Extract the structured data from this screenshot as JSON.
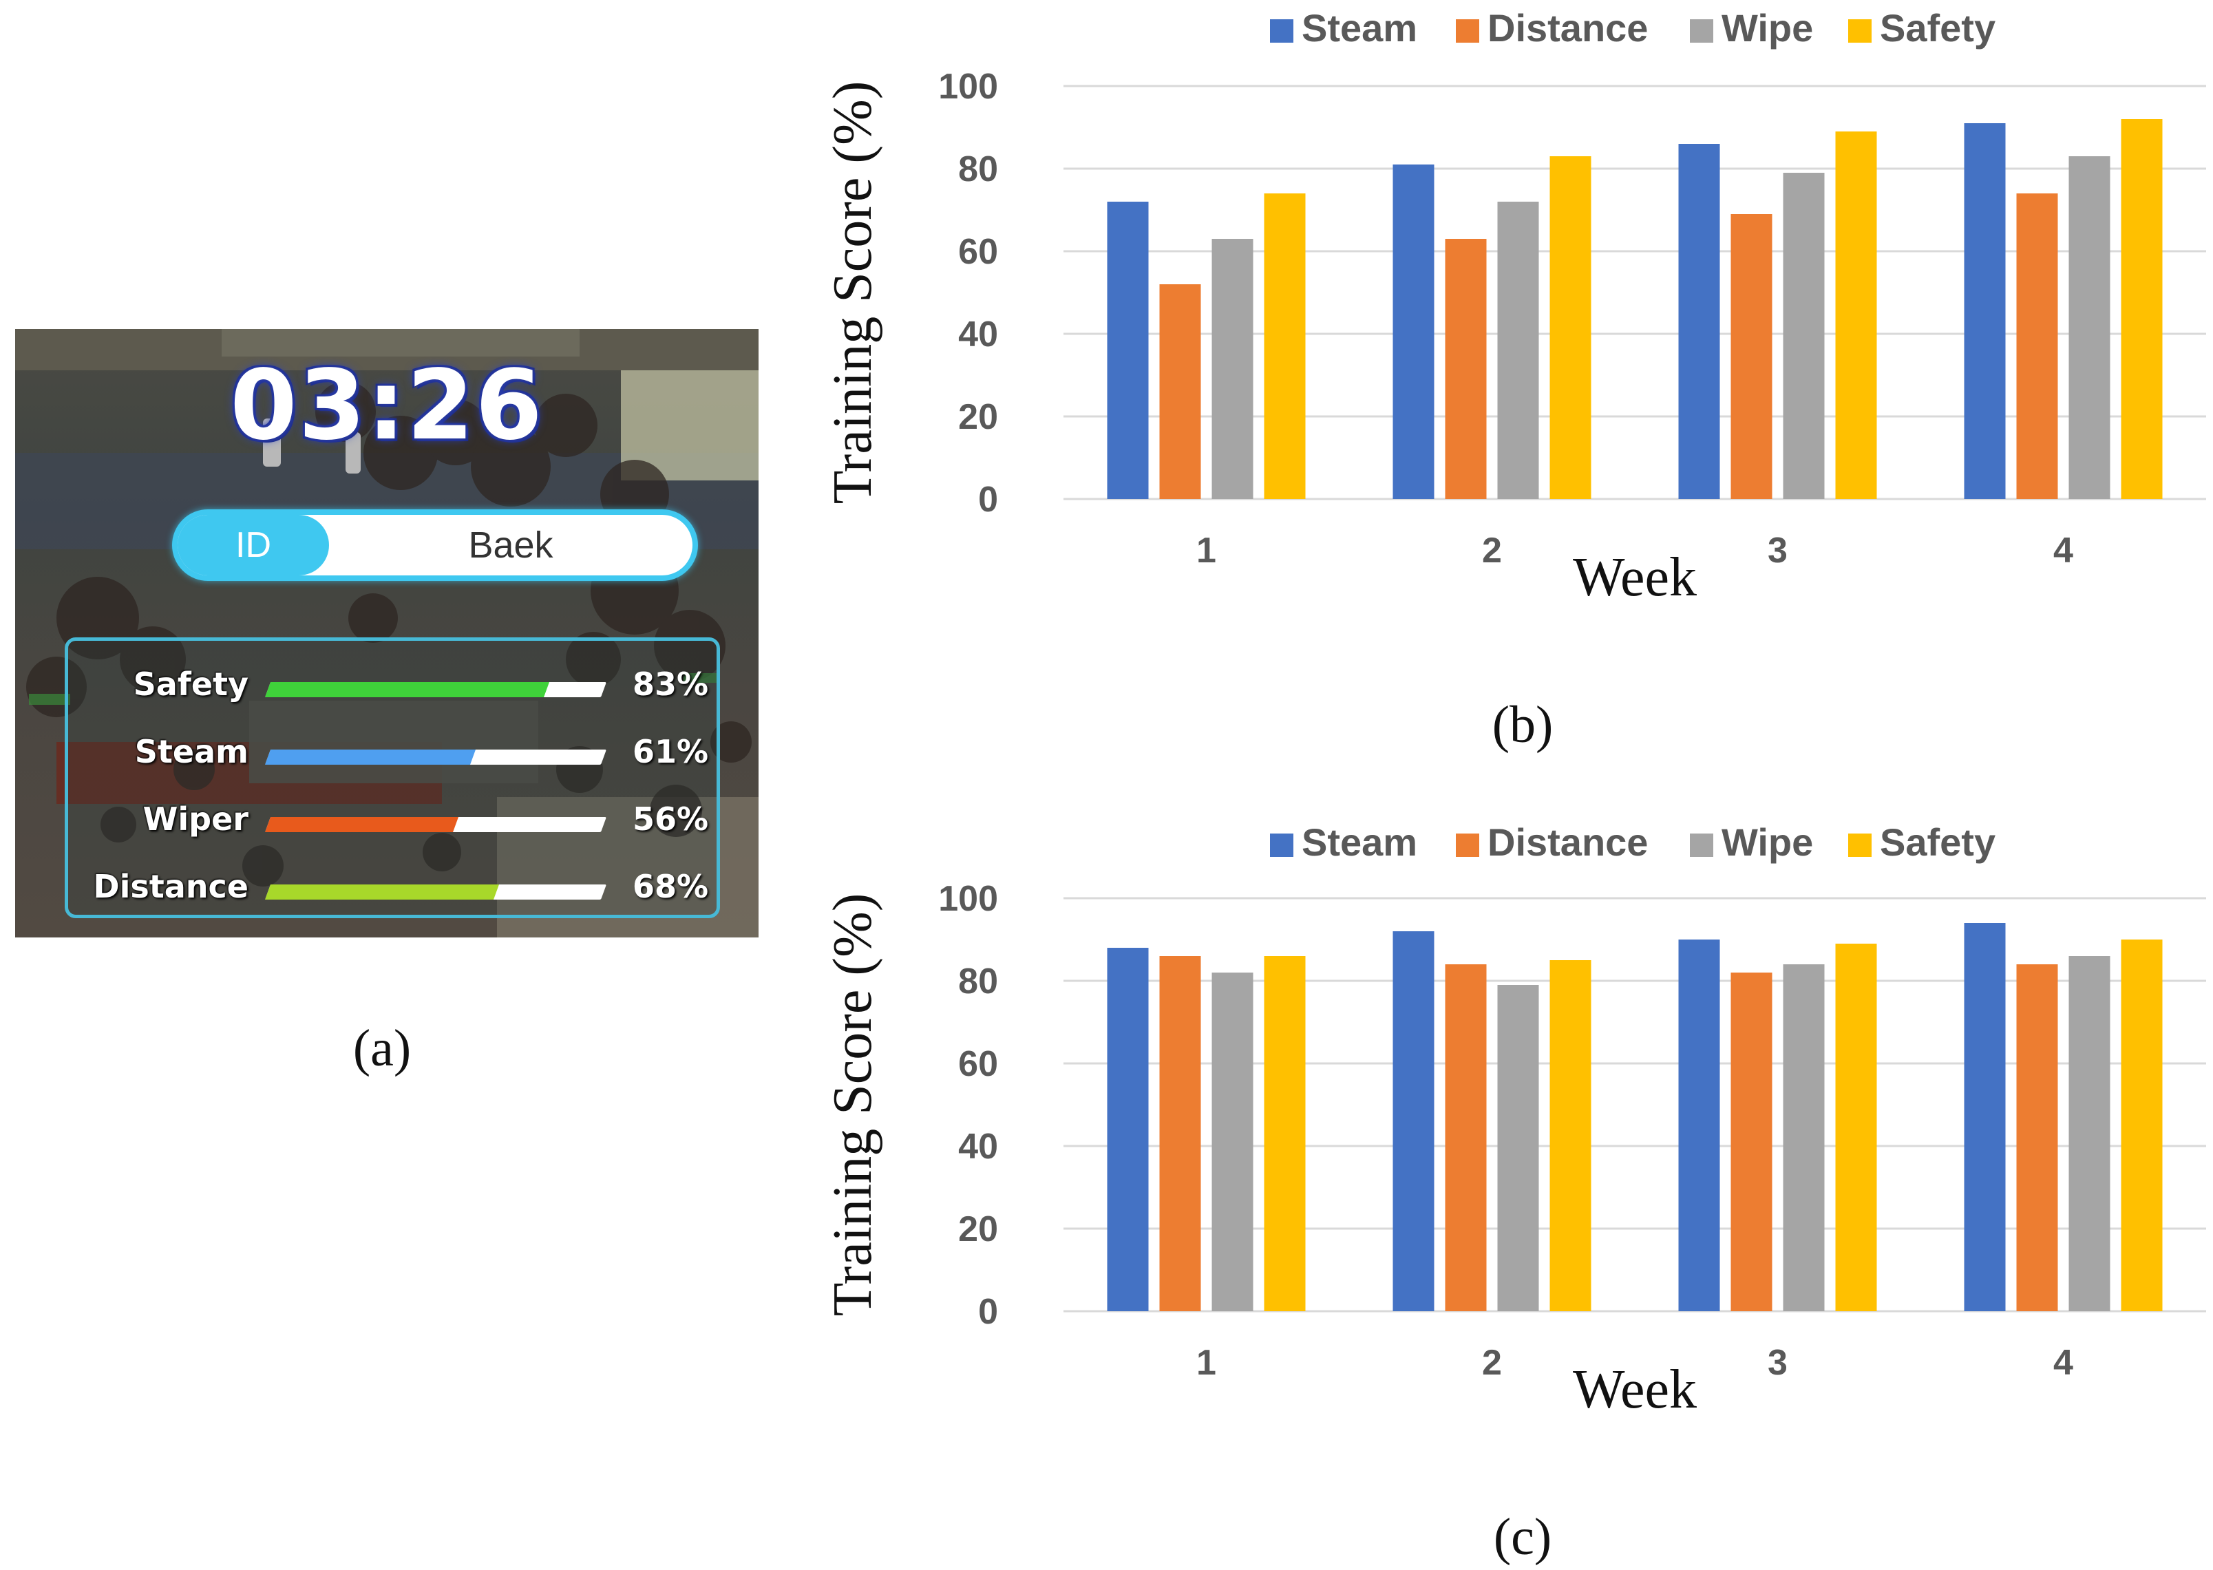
{
  "panel_a": {
    "label": "(a)",
    "timer": "03:26",
    "id_tab": "ID",
    "id_value": "Baek",
    "stats": [
      {
        "label": "Safety",
        "value": 0.83,
        "pct_text": "83%",
        "color": "#3fd23a"
      },
      {
        "label": "Steam",
        "value": 0.61,
        "pct_text": "61%",
        "color": "#4f9ff0"
      },
      {
        "label": "Wiper",
        "value": 0.56,
        "pct_text": "56%",
        "color": "#e85a1c"
      },
      {
        "label": "Distance",
        "value": 0.68,
        "pct_text": "68%",
        "color": "#a8d82a"
      }
    ]
  },
  "panel_b": {
    "label": "(b)"
  },
  "panel_c": {
    "label": "(c)"
  },
  "chart_data": [
    {
      "type": "bar",
      "title": "",
      "categories": [
        "1",
        "2",
        "3",
        "4"
      ],
      "xlabel": "Week",
      "ylabel": "Training Score (%)",
      "ylim": [
        0,
        100
      ],
      "yticks": [
        0,
        20,
        40,
        60,
        80,
        100
      ],
      "legend": "top",
      "grid": true,
      "series": [
        {
          "name": "Steam",
          "color": "#4472c4",
          "values": [
            72,
            81,
            86,
            91
          ]
        },
        {
          "name": "Distance",
          "color": "#ed7d31",
          "values": [
            52,
            63,
            69,
            74
          ]
        },
        {
          "name": "Wipe",
          "color": "#a5a5a5",
          "values": [
            63,
            72,
            79,
            83
          ]
        },
        {
          "name": "Safety",
          "color": "#ffc000",
          "values": [
            74,
            83,
            89,
            92
          ]
        }
      ]
    },
    {
      "type": "bar",
      "title": "",
      "categories": [
        "1",
        "2",
        "3",
        "4"
      ],
      "xlabel": "Week",
      "ylabel": "Training Score (%)",
      "ylim": [
        0,
        100
      ],
      "yticks": [
        0,
        20,
        40,
        60,
        80,
        100
      ],
      "legend": "top",
      "grid": true,
      "series": [
        {
          "name": "Steam",
          "color": "#4472c4",
          "values": [
            88,
            92,
            90,
            94
          ]
        },
        {
          "name": "Distance",
          "color": "#ed7d31",
          "values": [
            86,
            84,
            82,
            84
          ]
        },
        {
          "name": "Wipe",
          "color": "#a5a5a5",
          "values": [
            82,
            79,
            84,
            86
          ]
        },
        {
          "name": "Safety",
          "color": "#ffc000",
          "values": [
            86,
            85,
            89,
            90
          ]
        }
      ]
    }
  ]
}
